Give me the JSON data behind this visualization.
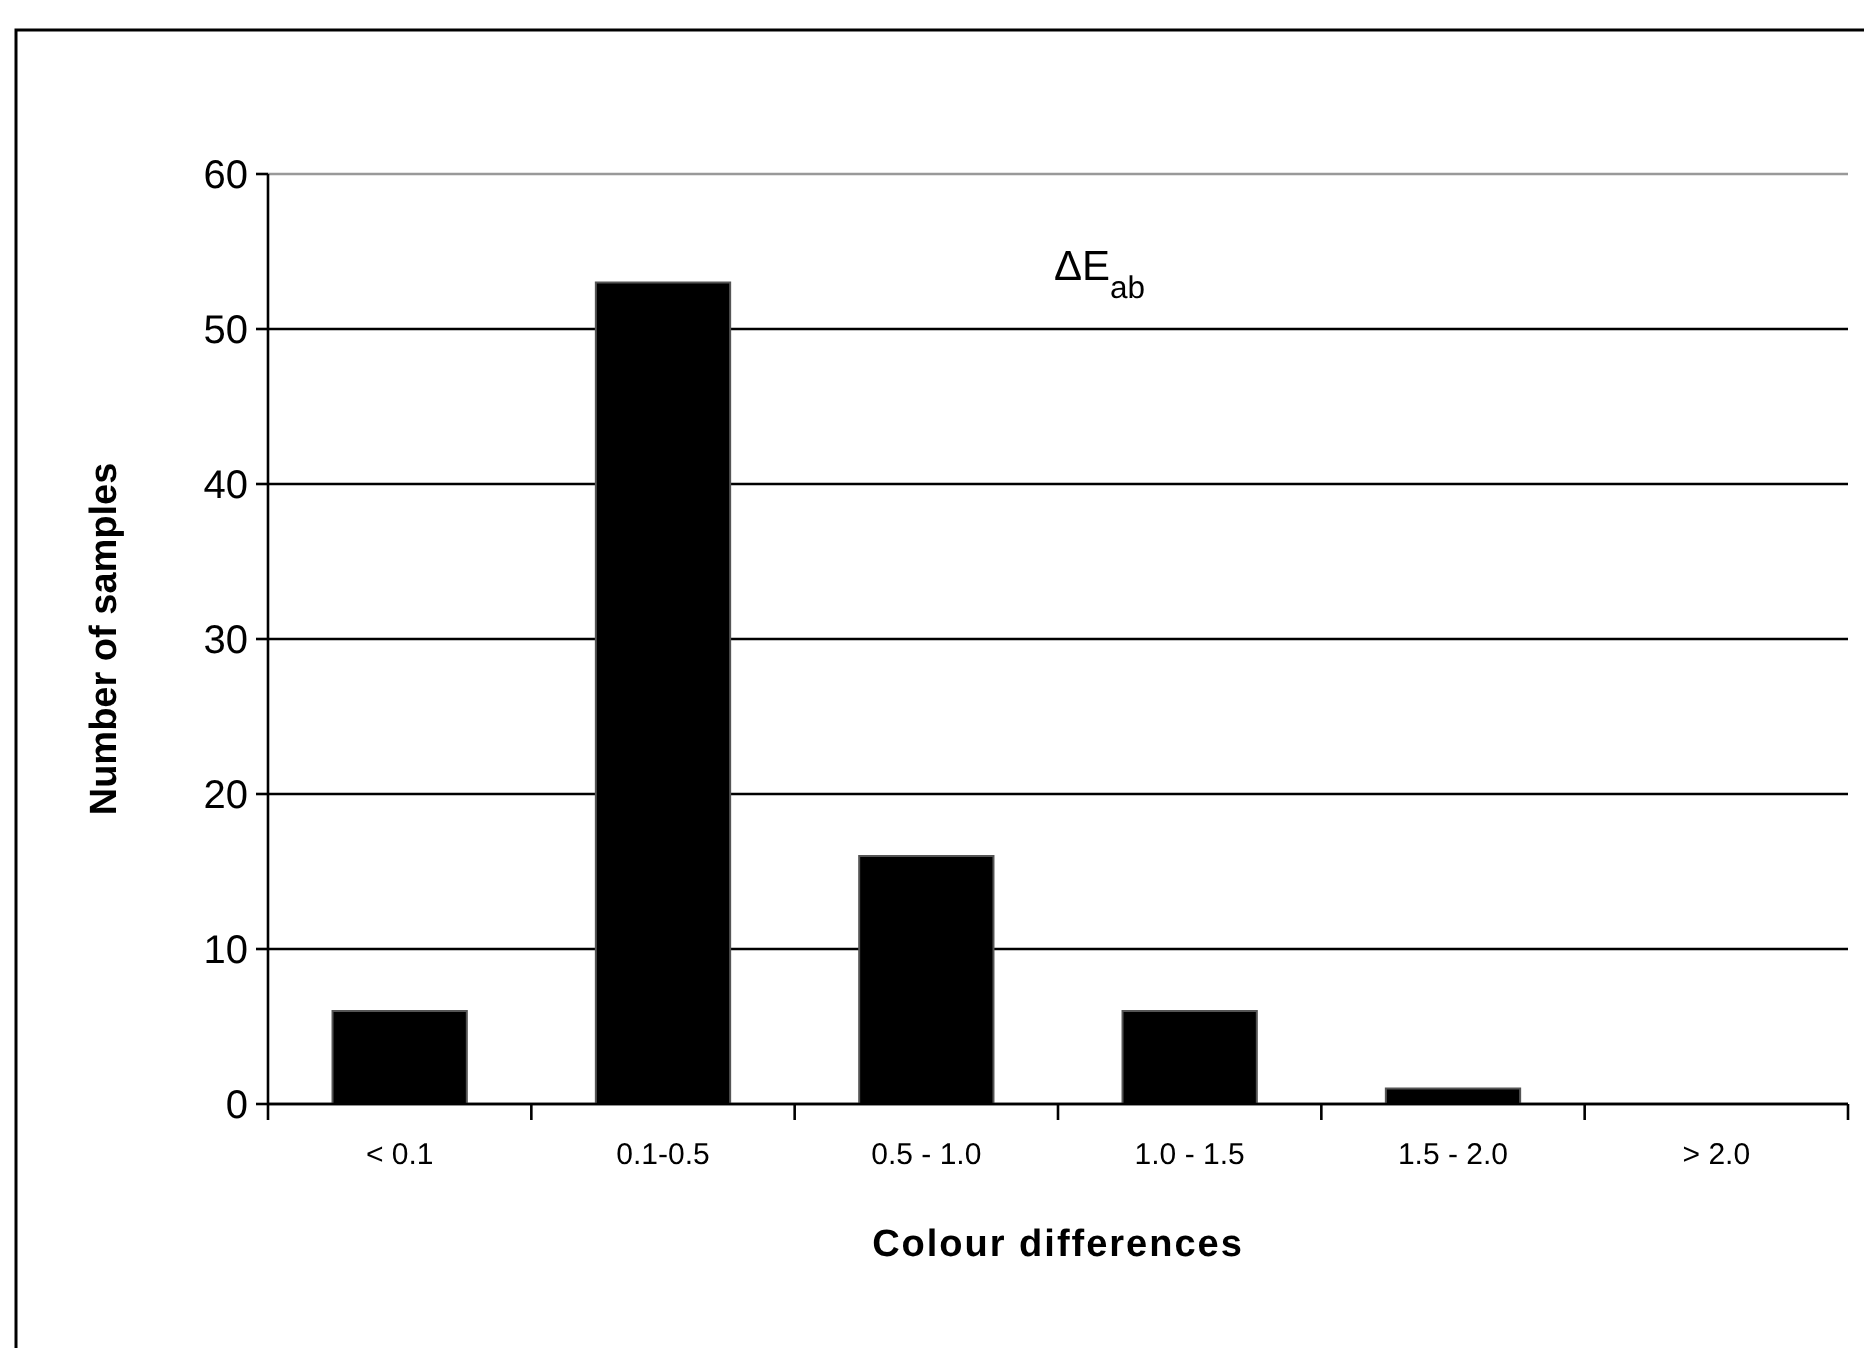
{
  "chart_data": {
    "type": "bar",
    "xlabel": "Colour differences",
    "ylabel": "Number of samples",
    "categories": [
      "< 0.1",
      "0.1-0.5",
      "0.5 - 1.0",
      "1.0 - 1.5",
      "1.5 - 2.0",
      "> 2.0"
    ],
    "values": [
      6,
      53,
      16,
      6,
      1,
      0
    ],
    "color": "#000000",
    "ylim": [
      0,
      60
    ],
    "yticks": [
      0,
      10,
      20,
      30,
      40,
      50,
      60
    ],
    "grid": "y",
    "annotations": [
      "ΔE$_{ab}$"
    ]
  }
}
